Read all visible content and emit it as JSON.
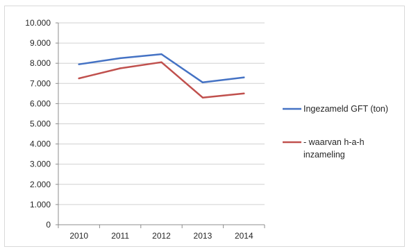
{
  "chart_data": {
    "type": "line",
    "categories": [
      "2010",
      "2011",
      "2012",
      "2013",
      "2014"
    ],
    "series": [
      {
        "name": "Ingezameld GFT (ton)",
        "values": [
          7950,
          8250,
          8450,
          7050,
          7300
        ],
        "color": "#4472c4"
      },
      {
        "name": "- waarvan h-a-h inzameling",
        "values": [
          7250,
          7750,
          8050,
          6300,
          6500
        ],
        "color": "#c0504d"
      }
    ],
    "y_ticks": [
      "0",
      "1.000",
      "2.000",
      "3.000",
      "4.000",
      "5.000",
      "6.000",
      "7.000",
      "8.000",
      "9.000",
      "10.000"
    ],
    "ylim": [
      0,
      10000
    ],
    "grid": true,
    "legend_position": "right",
    "title": "",
    "xlabel": "",
    "ylabel": ""
  }
}
